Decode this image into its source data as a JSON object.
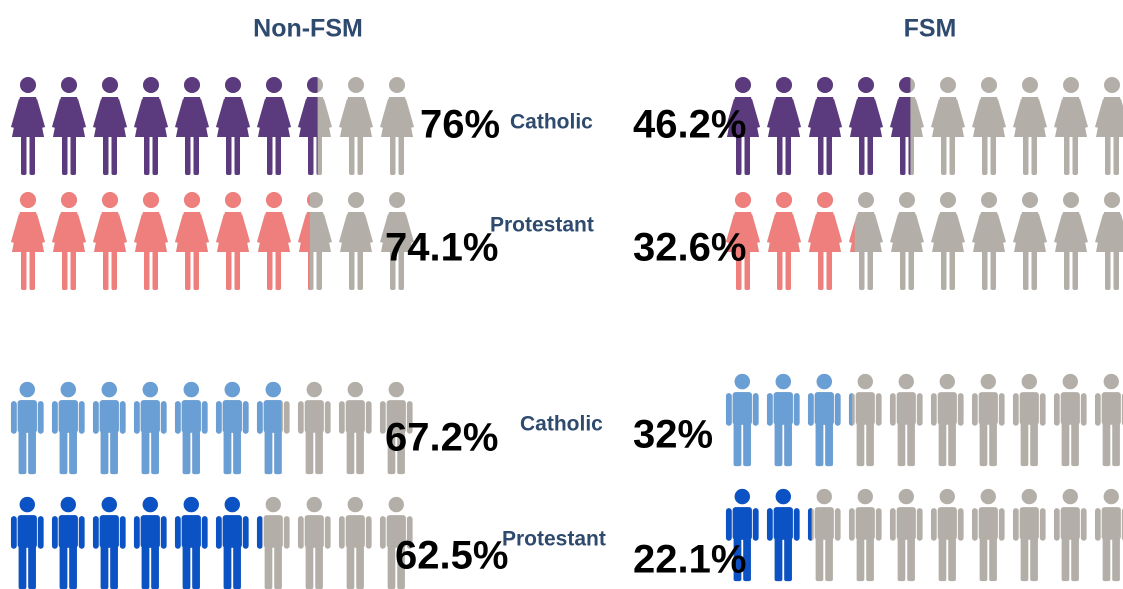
{
  "chart_data": {
    "type": "pictogram",
    "categories": [
      "Catholic",
      "Protestant",
      "Catholic",
      "Protestant"
    ],
    "row_icons": [
      "female",
      "female",
      "male",
      "male"
    ],
    "row_colors": [
      "#5b3a7e",
      "#ef7f7d",
      "#6a9fd6",
      "#0b52c4"
    ],
    "empty_color": "#b3afa8",
    "icons_per_row": 10,
    "series": [
      {
        "name": "Non-FSM",
        "values": [
          76,
          74.1,
          67.2,
          62.5
        ],
        "value_labels": [
          "76%",
          "74.1%",
          "67.2%",
          "62.5%"
        ]
      },
      {
        "name": "FSM",
        "values": [
          46.2,
          32.6,
          32,
          22.1
        ],
        "value_labels": [
          "46.2%",
          "32.6%",
          "32%",
          "22.1%"
        ]
      }
    ]
  }
}
